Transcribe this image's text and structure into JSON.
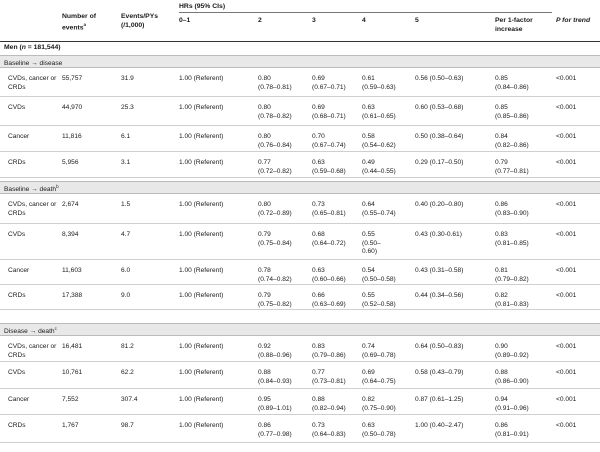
{
  "header": {
    "hrs_title": "HRs (95% CIs)",
    "events_label": "Number of events",
    "events_sup": "a",
    "pys_label": "Events/PYs (/1,000)",
    "q1": "0–1",
    "q2": "2",
    "q3": "3",
    "q4": "4",
    "q5": "5",
    "per_factor": "Per 1-factor increase",
    "p_trend": "P for trend"
  },
  "group": {
    "label_prefix": "Men (",
    "label_n": "n",
    "label_suffix": " = 181,544)"
  },
  "sections": [
    {
      "label": "Baseline → disease",
      "sup": "",
      "rows": [
        {
          "cause": "CVDs, cancer or CRDs",
          "events": "55,757",
          "pys": "31.9",
          "q1": "1.00 (Referent)",
          "q2": "0.80\n(0.78–0.81)",
          "q3": "0.69\n(0.67–0.71)",
          "q4": "0.61\n(0.59–0.63)",
          "q5": "0.56 (0.50–0.63)",
          "per": "0.85\n(0.84–0.86)",
          "p": "<0.001"
        },
        {
          "cause": "CVDs",
          "events": "44,970",
          "pys": "25.3",
          "q1": "1.00 (Referent)",
          "q2": "0.80\n(0.78–0.82)",
          "q3": "0.69\n(0.68–0.71)",
          "q4": "0.63\n(0.61–0.65)",
          "q5": "0.60 (0.53–0.68)",
          "per": "0.85\n(0.85–0.86)",
          "p": "<0.001"
        },
        {
          "cause": "Cancer",
          "events": "11,816",
          "pys": "6.1",
          "q1": "1.00 (Referent)",
          "q2": "0.80\n(0.76–0.84)",
          "q3": "0.70\n(0.67–0.74)",
          "q4": "0.58\n(0.54–0.62)",
          "q5": "0.50 (0.38–0.64)",
          "per": "0.84\n(0.82–0.86)",
          "p": "<0.001"
        },
        {
          "cause": "CRDs",
          "events": "5,956",
          "pys": "3.1",
          "q1": "1.00 (Referent)",
          "q2": "0.77\n(0.72–0.82)",
          "q3": "0.63\n(0.59–0.68)",
          "q4": "0.49\n(0.44–0.55)",
          "q5": "0.29 (0.17–0.50)",
          "per": "0.79\n(0.77–0.81)",
          "p": "<0.001"
        }
      ]
    },
    {
      "label": "Baseline → death",
      "sup": "b",
      "rows": [
        {
          "cause": "CVDs, cancer or CRDs",
          "events": "2,674",
          "pys": "1.5",
          "q1": "1.00 (Referent)",
          "q2": "0.80\n(0.72–0.89)",
          "q3": "0.73\n(0.65–0.81)",
          "q4": "0.64\n(0.55–0.74)",
          "q5": "0.40 (0.20–0.80)",
          "per": "0.86\n(0.83–0.90)",
          "p": "<0.001"
        },
        {
          "cause": "CVDs",
          "events": "8,394",
          "pys": "4.7",
          "q1": "1.00 (Referent)",
          "q2": "0.79\n(0.75–0.84)",
          "q3": "0.68\n(0.64–0.72)",
          "q4": "0.55\n(0.50–\n0.60)",
          "q5": "0.43 (0.30-0.61)",
          "per": "0.83\n(0.81–0.85)",
          "p": "<0.001"
        },
        {
          "cause": "Cancer",
          "events": "11,603",
          "pys": "6.0",
          "q1": "1.00 (Referent)",
          "q2": "0.78\n(0.74–0.82)",
          "q3": "0.63\n(0.60–0.66)",
          "q4": "0.54\n(0.50–0.58)",
          "q5": "0.43 (0.31–0.58)",
          "per": "0.81\n(0.79–0.82)",
          "p": "<0.001"
        },
        {
          "cause": "CRDs",
          "events": "17,388",
          "pys": "9.0",
          "q1": "1.00 (Referent)",
          "q2": "0.79\n(0.75–0.82)",
          "q3": "0.66\n(0.63–0.69)",
          "q4": "0.55\n(0.52–0.58)",
          "q5": "0.44 (0.34–0.56)",
          "per": "0.82\n(0.81–0.83)",
          "p": "<0.001"
        }
      ]
    },
    {
      "label": "Disease → death",
      "sup": "c",
      "rows": [
        {
          "cause": "CVDs, cancer or CRDs",
          "events": "16,481",
          "pys": "81.2",
          "q1": "1.00 (Referent)",
          "q2": "0.92\n(0.88–0.96)",
          "q3": "0.83\n(0.79–0.86)",
          "q4": "0.74\n(0.69–0.78)",
          "q5": "0.64 (0.50–0.83)",
          "per": "0.90\n(0.89–0.92)",
          "p": "<0.001"
        },
        {
          "cause": "CVDs",
          "events": "10,761",
          "pys": "62.2",
          "q1": "1.00 (Referent)",
          "q2": "0.88\n(0.84–0.93)",
          "q3": "0.77\n(0.73–0.81)",
          "q4": "0.69\n(0.64–0.75)",
          "q5": "0.58 (0.43–0.79)",
          "per": "0.88\n(0.86–0.90)",
          "p": "<0.001"
        },
        {
          "cause": "Cancer",
          "events": "7,552",
          "pys": "307.4",
          "q1": "1.00 (Referent)",
          "q2": "0.95\n(0.89–1.01)",
          "q3": "0.88\n(0.82–0.94)",
          "q4": "0.82\n(0.75–0.90)",
          "q5": "0.87 (0.61–1.25)",
          "per": "0.94\n(0.91–0.96)",
          "p": "<0.001"
        },
        {
          "cause": "CRDs",
          "events": "1,767",
          "pys": "98.7",
          "q1": "1.00 (Referent)",
          "q2": "0.86\n(0.77–0.98)",
          "q3": "0.73\n(0.64–0.83)",
          "q4": "0.63\n(0.50–0.78)",
          "q5": "1.00 (0.40–2.47)",
          "per": "0.86\n(0.81–0.91)",
          "p": "<0.001"
        }
      ]
    }
  ]
}
